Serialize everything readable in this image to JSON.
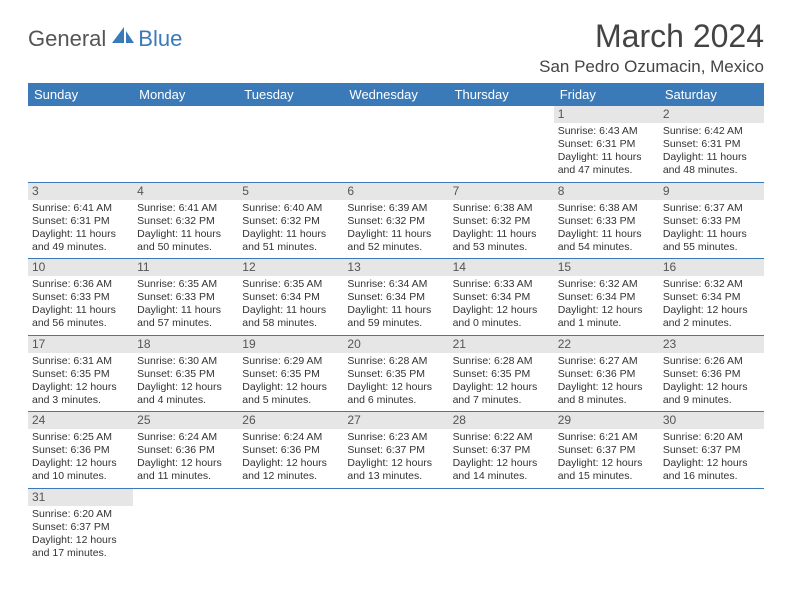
{
  "logo": {
    "general": "General",
    "blue": "Blue"
  },
  "title": "March 2024",
  "location": "San Pedro Ozumacin, Mexico",
  "colors": {
    "header_bg": "#3a7ab8",
    "daynum_bg": "#e6e6e6",
    "border": "#3a7ab8"
  },
  "weekdays": [
    "Sunday",
    "Monday",
    "Tuesday",
    "Wednesday",
    "Thursday",
    "Friday",
    "Saturday"
  ],
  "weeks": [
    [
      null,
      null,
      null,
      null,
      null,
      {
        "n": "1",
        "sr": "6:43 AM",
        "ss": "6:31 PM",
        "dl": "11 hours and 47 minutes."
      },
      {
        "n": "2",
        "sr": "6:42 AM",
        "ss": "6:31 PM",
        "dl": "11 hours and 48 minutes."
      }
    ],
    [
      {
        "n": "3",
        "sr": "6:41 AM",
        "ss": "6:31 PM",
        "dl": "11 hours and 49 minutes."
      },
      {
        "n": "4",
        "sr": "6:41 AM",
        "ss": "6:32 PM",
        "dl": "11 hours and 50 minutes."
      },
      {
        "n": "5",
        "sr": "6:40 AM",
        "ss": "6:32 PM",
        "dl": "11 hours and 51 minutes."
      },
      {
        "n": "6",
        "sr": "6:39 AM",
        "ss": "6:32 PM",
        "dl": "11 hours and 52 minutes."
      },
      {
        "n": "7",
        "sr": "6:38 AM",
        "ss": "6:32 PM",
        "dl": "11 hours and 53 minutes."
      },
      {
        "n": "8",
        "sr": "6:38 AM",
        "ss": "6:33 PM",
        "dl": "11 hours and 54 minutes."
      },
      {
        "n": "9",
        "sr": "6:37 AM",
        "ss": "6:33 PM",
        "dl": "11 hours and 55 minutes."
      }
    ],
    [
      {
        "n": "10",
        "sr": "6:36 AM",
        "ss": "6:33 PM",
        "dl": "11 hours and 56 minutes."
      },
      {
        "n": "11",
        "sr": "6:35 AM",
        "ss": "6:33 PM",
        "dl": "11 hours and 57 minutes."
      },
      {
        "n": "12",
        "sr": "6:35 AM",
        "ss": "6:34 PM",
        "dl": "11 hours and 58 minutes."
      },
      {
        "n": "13",
        "sr": "6:34 AM",
        "ss": "6:34 PM",
        "dl": "11 hours and 59 minutes."
      },
      {
        "n": "14",
        "sr": "6:33 AM",
        "ss": "6:34 PM",
        "dl": "12 hours and 0 minutes."
      },
      {
        "n": "15",
        "sr": "6:32 AM",
        "ss": "6:34 PM",
        "dl": "12 hours and 1 minute."
      },
      {
        "n": "16",
        "sr": "6:32 AM",
        "ss": "6:34 PM",
        "dl": "12 hours and 2 minutes."
      }
    ],
    [
      {
        "n": "17",
        "sr": "6:31 AM",
        "ss": "6:35 PM",
        "dl": "12 hours and 3 minutes."
      },
      {
        "n": "18",
        "sr": "6:30 AM",
        "ss": "6:35 PM",
        "dl": "12 hours and 4 minutes."
      },
      {
        "n": "19",
        "sr": "6:29 AM",
        "ss": "6:35 PM",
        "dl": "12 hours and 5 minutes."
      },
      {
        "n": "20",
        "sr": "6:28 AM",
        "ss": "6:35 PM",
        "dl": "12 hours and 6 minutes."
      },
      {
        "n": "21",
        "sr": "6:28 AM",
        "ss": "6:35 PM",
        "dl": "12 hours and 7 minutes."
      },
      {
        "n": "22",
        "sr": "6:27 AM",
        "ss": "6:36 PM",
        "dl": "12 hours and 8 minutes."
      },
      {
        "n": "23",
        "sr": "6:26 AM",
        "ss": "6:36 PM",
        "dl": "12 hours and 9 minutes."
      }
    ],
    [
      {
        "n": "24",
        "sr": "6:25 AM",
        "ss": "6:36 PM",
        "dl": "12 hours and 10 minutes."
      },
      {
        "n": "25",
        "sr": "6:24 AM",
        "ss": "6:36 PM",
        "dl": "12 hours and 11 minutes."
      },
      {
        "n": "26",
        "sr": "6:24 AM",
        "ss": "6:36 PM",
        "dl": "12 hours and 12 minutes."
      },
      {
        "n": "27",
        "sr": "6:23 AM",
        "ss": "6:37 PM",
        "dl": "12 hours and 13 minutes."
      },
      {
        "n": "28",
        "sr": "6:22 AM",
        "ss": "6:37 PM",
        "dl": "12 hours and 14 minutes."
      },
      {
        "n": "29",
        "sr": "6:21 AM",
        "ss": "6:37 PM",
        "dl": "12 hours and 15 minutes."
      },
      {
        "n": "30",
        "sr": "6:20 AM",
        "ss": "6:37 PM",
        "dl": "12 hours and 16 minutes."
      }
    ],
    [
      {
        "n": "31",
        "sr": "6:20 AM",
        "ss": "6:37 PM",
        "dl": "12 hours and 17 minutes."
      },
      null,
      null,
      null,
      null,
      null,
      null
    ]
  ],
  "labels": {
    "sunrise": "Sunrise:",
    "sunset": "Sunset:",
    "daylight": "Daylight:"
  }
}
